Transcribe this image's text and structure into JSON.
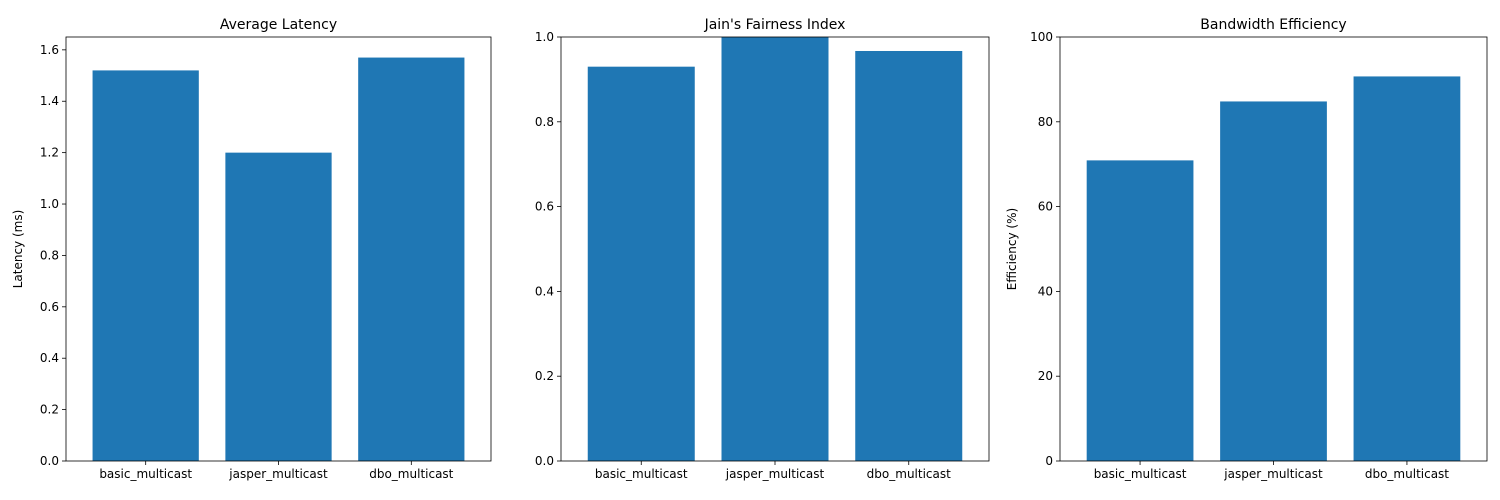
{
  "chart_data": [
    {
      "type": "bar",
      "title": "Average Latency",
      "xlabel": "",
      "ylabel": "Latency (ms)",
      "categories": [
        "basic_multicast",
        "jasper_multicast",
        "dbo_multicast"
      ],
      "values": [
        1.52,
        1.2,
        1.57
      ],
      "ylim": [
        0,
        1.65
      ],
      "yticks": [
        0.0,
        0.2,
        0.4,
        0.6,
        0.8,
        1.0,
        1.2,
        1.4,
        1.6
      ],
      "ytick_labels": [
        "0.0",
        "0.2",
        "0.4",
        "0.6",
        "0.8",
        "1.0",
        "1.2",
        "1.4",
        "1.6"
      ],
      "color": "#1f77b4",
      "grid": false
    },
    {
      "type": "bar",
      "title": "Jain's Fairness Index",
      "xlabel": "",
      "ylabel": "",
      "categories": [
        "basic_multicast",
        "jasper_multicast",
        "dbo_multicast"
      ],
      "values": [
        0.93,
        1.0,
        0.967
      ],
      "ylim": [
        0,
        1.0
      ],
      "yticks": [
        0.0,
        0.2,
        0.4,
        0.6,
        0.8,
        1.0
      ],
      "ytick_labels": [
        "0.0",
        "0.2",
        "0.4",
        "0.6",
        "0.8",
        "1.0"
      ],
      "color": "#1f77b4",
      "grid": false
    },
    {
      "type": "bar",
      "title": "Bandwidth Efficiency",
      "xlabel": "",
      "ylabel": "Efficiency (%)",
      "categories": [
        "basic_multicast",
        "jasper_multicast",
        "dbo_multicast"
      ],
      "values": [
        70.9,
        84.8,
        90.7
      ],
      "ylim": [
        0,
        100
      ],
      "yticks": [
        0,
        20,
        40,
        60,
        80,
        100
      ],
      "ytick_labels": [
        "0",
        "20",
        "40",
        "60",
        "80",
        "100"
      ],
      "color": "#1f77b4",
      "grid": false
    }
  ]
}
